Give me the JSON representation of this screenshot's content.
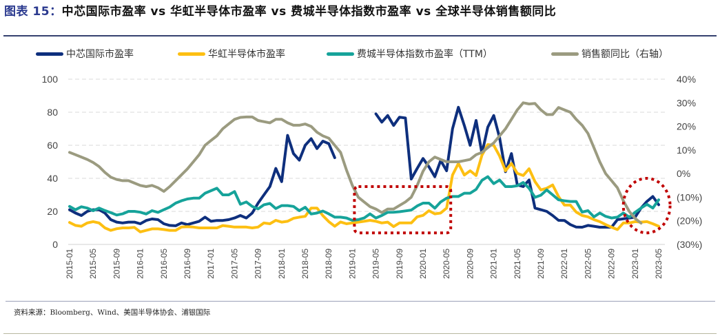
{
  "title": {
    "figure_label": "图表 15：",
    "text": "中芯国际市盈率 vs 华虹半导体市盈率 vs 费城半导体指数市盈率 vs 全球半导体销售额同比"
  },
  "source": "资料来源：Bloomberg、Wind、美国半导体协会、浦银国际",
  "chart_data": {
    "type": "line",
    "title": "中芯国际市盈率 vs 华虹半导体市盈率 vs 费城半导体指数市盈率 vs 全球半导体销售额同比",
    "x_start": "2015-01",
    "x_end": "2023-05",
    "x_frequency": "monthly",
    "x_tick_labels": [
      "2015-01",
      "2015-05",
      "2015-09",
      "2016-01",
      "2016-05",
      "2016-09",
      "2017-01",
      "2017-05",
      "2017-09",
      "2018-01",
      "2018-05",
      "2018-09",
      "2019-01",
      "2019-05",
      "2019-09",
      "2020-01",
      "2020-05",
      "2020-09",
      "2021-01",
      "2021-05",
      "2021-09",
      "2022-01",
      "2022-05",
      "2022-09",
      "2023-01",
      "2023-05"
    ],
    "y_left": {
      "range": [
        0,
        100
      ],
      "ticks": [
        0,
        20,
        40,
        60,
        80,
        100
      ],
      "tick_labels": [
        "0",
        "20",
        "40",
        "60",
        "80",
        "100"
      ]
    },
    "y_right": {
      "range": [
        -30,
        40
      ],
      "ticks": [
        -30,
        -20,
        -10,
        0,
        10,
        20,
        30,
        40
      ],
      "tick_labels": [
        "(30%)",
        "(20%)",
        "(10%)",
        "0%",
        "10%",
        "20%",
        "30%",
        "40%"
      ]
    },
    "grid": "horizontal dashed",
    "legend_position": "top",
    "series": [
      {
        "name": "中芯国际市盈率",
        "axis": "left",
        "color": "#0e2f7d",
        "values": [
          21,
          19,
          17.5,
          20,
          21,
          21,
          19,
          15,
          13.5,
          13,
          13.5,
          13.5,
          12.5,
          14.5,
          15.4,
          15,
          12.5,
          11.5,
          11.3,
          13,
          12,
          13,
          14,
          16.5,
          14,
          14.5,
          14.5,
          15,
          16,
          17.5,
          16,
          19,
          25,
          30,
          35,
          46,
          38,
          66,
          55,
          51,
          60,
          64,
          58,
          62.5,
          61,
          52.5,
          null,
          null,
          null,
          null,
          null,
          null,
          79,
          74,
          78,
          72,
          77,
          76.5,
          39.6,
          46,
          52,
          47,
          41,
          50.8,
          44.6,
          70,
          83,
          72,
          60,
          75,
          55,
          71,
          78,
          64.6,
          44,
          55,
          36,
          35,
          39,
          22,
          21,
          20,
          17.5,
          14.6,
          14.5,
          12,
          10.5,
          10.4,
          11.5,
          11,
          10.4,
          10.4,
          10.4,
          15,
          15.5,
          16,
          16.5,
          22,
          26,
          29,
          24
        ]
      },
      {
        "name": "华虹半导体市盈率",
        "axis": "left",
        "color": "#fdbf12",
        "values": [
          13.3,
          11.5,
          11,
          13,
          13.8,
          13,
          10,
          8.5,
          9.5,
          10,
          10,
          10.3,
          7.6,
          8.5,
          9.4,
          9.4,
          9,
          8.5,
          8.5,
          10.5,
          10.7,
          10.5,
          10,
          10,
          10,
          10,
          11.4,
          11,
          10.5,
          10.5,
          10.5,
          10,
          10.5,
          13,
          12.5,
          14.6,
          13.5,
          14,
          15.8,
          16.5,
          17,
          22,
          22,
          17.4,
          13.8,
          11,
          13.6,
          12.5,
          13,
          13.5,
          14,
          14.6,
          14,
          13,
          13.5,
          10.8,
          13,
          13,
          13,
          16.7,
          17.6,
          20.4,
          18.5,
          19,
          22,
          42,
          49,
          42,
          44.6,
          41.7,
          54,
          60.4,
          60,
          53.5,
          44.6,
          49,
          43,
          41.7,
          45.8,
          38,
          33,
          34,
          36,
          29,
          23.8,
          23.8,
          19.6,
          17.5,
          16.7,
          15,
          13.8,
          12,
          10.4,
          9,
          13,
          13,
          13.8,
          13.5,
          13.8,
          12.5,
          11
        ]
      },
      {
        "name": "费城半导体指数市盈率（TTM）",
        "axis": "left",
        "color": "#16a39a",
        "values": [
          23,
          21,
          22.8,
          22,
          20.4,
          22,
          20.5,
          19.2,
          17.8,
          18.5,
          20,
          20,
          19.5,
          18.4,
          20.4,
          19.4,
          21,
          22.6,
          25,
          26.4,
          27.5,
          28,
          28,
          31,
          32.5,
          34,
          30,
          30,
          32,
          24.3,
          25.7,
          23,
          21.5,
          24,
          24.8,
          21.7,
          23.5,
          23.5,
          23,
          20.4,
          22.5,
          18.4,
          19,
          20.2,
          18.5,
          16.5,
          16.5,
          16,
          14.6,
          15,
          16,
          18.5,
          16,
          17.5,
          19.4,
          19.5,
          19.8,
          20.3,
          20.8,
          23.3,
          25,
          25,
          21.9,
          25.7,
          28,
          29,
          29,
          31,
          31,
          33.3,
          38.8,
          41,
          36.8,
          39,
          35,
          35,
          35.5,
          37.5,
          34,
          28.5,
          29.8,
          33,
          30,
          27,
          26.4,
          26,
          26,
          19.6,
          20.4,
          16.7,
          19,
          17,
          16,
          16.5,
          19,
          16.5,
          19.4,
          22,
          24.3,
          22,
          27
        ]
      },
      {
        "name": "销售额同比（右轴）",
        "axis": "right",
        "color": "#9b9b80",
        "unit": "%",
        "values": [
          9,
          8,
          7,
          6,
          4.7,
          3,
          0.5,
          -1.5,
          -2.5,
          -3,
          -3,
          -4,
          -5,
          -5.5,
          -5,
          -6,
          -7.5,
          -5.5,
          -3,
          -0.5,
          2,
          5,
          8,
          12,
          14,
          16,
          19,
          21,
          23,
          23.8,
          24,
          24,
          22.5,
          22,
          21.5,
          23,
          23,
          21.5,
          20.5,
          20.5,
          21,
          20,
          17.5,
          16,
          15,
          12,
          9,
          1.5,
          -5,
          -10,
          -12,
          -14,
          -15,
          -16.5,
          -15,
          -15,
          -13.5,
          -12,
          -10,
          -5,
          1,
          5,
          7,
          6,
          5,
          5,
          5,
          5.5,
          6,
          8,
          9,
          11,
          13,
          16,
          19,
          23,
          27,
          30,
          29.5,
          29.7,
          27,
          25,
          25,
          28,
          27,
          26,
          23,
          20.5,
          17,
          11,
          5,
          0,
          -3,
          -6,
          -11.5,
          -16,
          -19,
          -21,
          null,
          null,
          null
        ]
      }
    ],
    "annotations": [
      {
        "type": "dotted-rectangle",
        "color": "#c00000",
        "x_range": [
          "2019-01",
          "2020-05"
        ],
        "y_range_left": [
          7,
          35
        ]
      },
      {
        "type": "dotted-ellipse",
        "color": "#c00000",
        "x_range": [
          "2022-11",
          "2023-06"
        ],
        "y_range_left": [
          7,
          40
        ]
      }
    ]
  }
}
